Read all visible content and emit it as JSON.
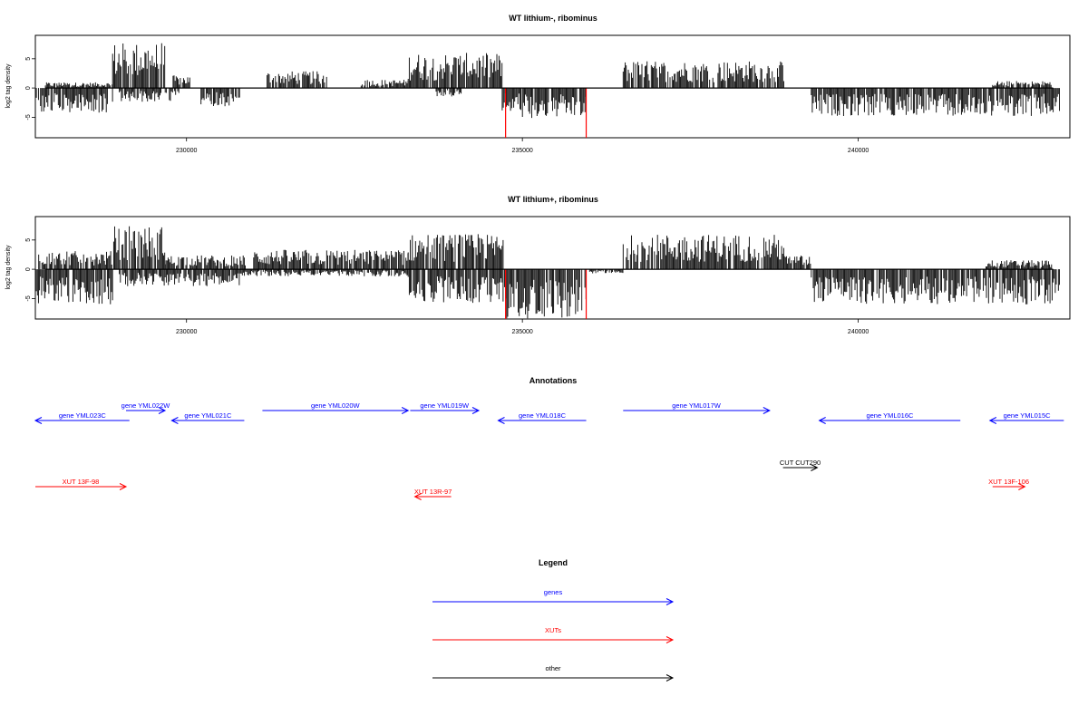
{
  "colors": {
    "gene": "#0000ff",
    "xut": "#ff0000",
    "other": "#000000",
    "signal": "#000000",
    "highlight": "#ff0000"
  },
  "chart_data": [
    {
      "type": "bar",
      "title": "WT lithium-, ribominus",
      "ylabel": "log2 tag density",
      "xlim": [
        227750,
        243150
      ],
      "ylim": [
        -8.5,
        9
      ],
      "xticks": [
        230000,
        235000,
        240000
      ],
      "yticks": [
        -5,
        0,
        5
      ],
      "grid": false,
      "signal": {
        "plus_regions": [
          {
            "from": 227900,
            "to": 228900,
            "level": 0.8
          },
          {
            "from": 228900,
            "to": 229680,
            "level": 6.5
          },
          {
            "from": 229800,
            "to": 230050,
            "level": 1.8
          },
          {
            "from": 231200,
            "to": 232100,
            "level": 2.4
          },
          {
            "from": 232600,
            "to": 233300,
            "level": 1.2
          },
          {
            "from": 233300,
            "to": 234700,
            "level": 5.0
          },
          {
            "from": 236500,
            "to": 238900,
            "level": 3.9
          },
          {
            "from": 242000,
            "to": 242900,
            "level": 1.0
          }
        ],
        "minus_regions": [
          {
            "from": 227750,
            "to": 228900,
            "level": -3.6
          },
          {
            "from": 229000,
            "to": 229900,
            "level": -2.0
          },
          {
            "from": 230200,
            "to": 230800,
            "level": -2.6
          },
          {
            "from": 233700,
            "to": 234100,
            "level": -1.2
          },
          {
            "from": 234700,
            "to": 235000,
            "level": -3.5
          },
          {
            "from": 235000,
            "to": 235950,
            "level": -4.3
          },
          {
            "from": 239300,
            "to": 243000,
            "level": -4.0
          }
        ],
        "highlight_lines": [
          {
            "x": 234750,
            "y": -8.5
          },
          {
            "x": 235950,
            "y": -8.5
          }
        ]
      }
    },
    {
      "type": "bar",
      "title": "WT lithium+, ribominus",
      "ylabel": "log2 tag density",
      "xlim": [
        227750,
        243150
      ],
      "ylim": [
        -8.5,
        9
      ],
      "xticks": [
        230000,
        235000,
        240000
      ],
      "yticks": [
        -5,
        0,
        5
      ],
      "grid": false,
      "signal": {
        "plus_regions": [
          {
            "from": 227800,
            "to": 228900,
            "level": 2.6
          },
          {
            "from": 228900,
            "to": 229680,
            "level": 6.2
          },
          {
            "from": 229680,
            "to": 230900,
            "level": 2.0
          },
          {
            "from": 231000,
            "to": 233300,
            "level": 2.8
          },
          {
            "from": 233300,
            "to": 234720,
            "level": 5.0
          },
          {
            "from": 236500,
            "to": 238900,
            "level": 5.0
          },
          {
            "from": 238900,
            "to": 239300,
            "level": 2.0
          },
          {
            "from": 241900,
            "to": 242900,
            "level": 1.3
          }
        ],
        "minus_regions": [
          {
            "from": 227750,
            "to": 228900,
            "level": -5.0
          },
          {
            "from": 229000,
            "to": 230800,
            "level": -2.4
          },
          {
            "from": 230800,
            "to": 233300,
            "level": -1.0
          },
          {
            "from": 233300,
            "to": 234720,
            "level": -4.8
          },
          {
            "from": 234720,
            "to": 235950,
            "level": -7.0
          },
          {
            "from": 236000,
            "to": 236500,
            "level": -0.6
          },
          {
            "from": 239300,
            "to": 243000,
            "level": -5.0
          }
        ],
        "highlight_lines": [
          {
            "x": 234750,
            "y": -8.5
          },
          {
            "x": 235950,
            "y": -8.5
          }
        ]
      }
    }
  ],
  "annotations": {
    "title": "Annotations",
    "features": [
      {
        "label": "gene YML023C",
        "kind": "gene",
        "from": 227750,
        "to": 229150,
        "strand": "-",
        "row": 1
      },
      {
        "label": "gene YML022W",
        "kind": "gene",
        "from": 229100,
        "to": 229680,
        "strand": "+",
        "row": 0
      },
      {
        "label": "gene YML021C",
        "kind": "gene",
        "from": 229780,
        "to": 230860,
        "strand": "-",
        "row": 1
      },
      {
        "label": "gene YML020W",
        "kind": "gene",
        "from": 231130,
        "to": 233300,
        "strand": "+",
        "row": 0
      },
      {
        "label": "gene YML019W",
        "kind": "gene",
        "from": 233330,
        "to": 234350,
        "strand": "+",
        "row": 0
      },
      {
        "label": "gene YML018C",
        "kind": "gene",
        "from": 234640,
        "to": 235950,
        "strand": "-",
        "row": 1
      },
      {
        "label": "gene YML017W",
        "kind": "gene",
        "from": 236500,
        "to": 238680,
        "strand": "+",
        "row": 0
      },
      {
        "label": "gene YML016C",
        "kind": "gene",
        "from": 239420,
        "to": 241520,
        "strand": "-",
        "row": 1
      },
      {
        "label": "gene YML015C",
        "kind": "gene",
        "from": 241960,
        "to": 243060,
        "strand": "-",
        "row": 1
      },
      {
        "label": "XUT 13F-98",
        "kind": "xut",
        "from": 227750,
        "to": 229100,
        "strand": "+",
        "row": 3
      },
      {
        "label": "XUT 13R-97",
        "kind": "xut",
        "from": 233400,
        "to": 233940,
        "strand": "-",
        "row": 4
      },
      {
        "label": "XUT 13F-106",
        "kind": "xut",
        "from": 242000,
        "to": 242480,
        "strand": "+",
        "row": 3
      },
      {
        "label": "CUT CUT290",
        "kind": "other",
        "from": 238880,
        "to": 239390,
        "strand": "+",
        "row": 2
      }
    ]
  },
  "legend": {
    "title": "Legend",
    "items": [
      {
        "label": "genes",
        "kind": "gene"
      },
      {
        "label": "XUTs",
        "kind": "xut"
      },
      {
        "label": "other",
        "kind": "other"
      }
    ]
  }
}
